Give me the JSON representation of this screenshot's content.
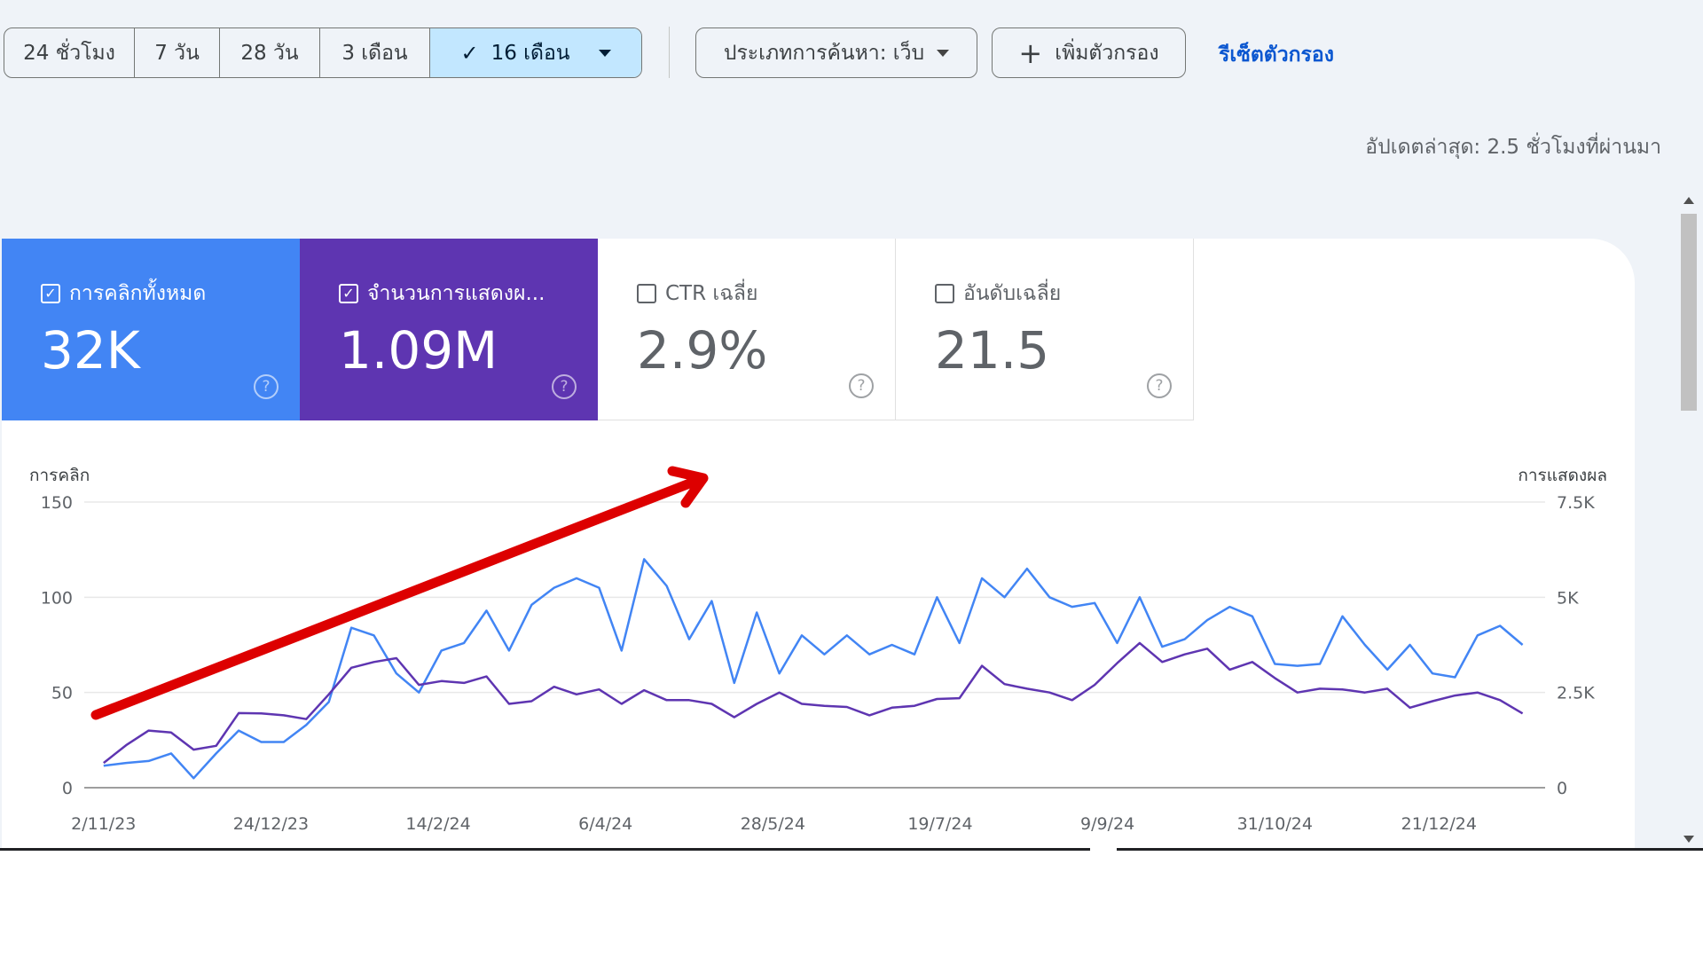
{
  "toolbar": {
    "ranges": [
      "24 ชั่วโมง",
      "7 วัน",
      "28 วัน",
      "3 เดือน",
      "16 เดือน"
    ],
    "selected_range": "16 เดือน",
    "search_type": "ประเภทการค้นหา: เว็บ",
    "add_filter": "เพิ่มตัวกรอง",
    "reset": "รีเซ็ตตัวกรอง",
    "last_updated": "อัปเดตล่าสุด: 2.5 ชั่วโมงที่ผ่านมา"
  },
  "cards": [
    {
      "label": "การคลิกทั้งหมด",
      "value": "32K",
      "checked": true,
      "color": "#4285f4"
    },
    {
      "label": "จำนวนการแสดงผ...",
      "value": "1.09M",
      "checked": true,
      "color": "#5e35b1"
    },
    {
      "label": "CTR เฉลี่ย",
      "value": "2.9%",
      "checked": false,
      "color": "#ffffff"
    },
    {
      "label": "อันดับเฉลี่ย",
      "value": "21.5",
      "checked": false,
      "color": "#ffffff"
    }
  ],
  "chart_data": {
    "type": "line",
    "left_axis": {
      "label": "การคลิก",
      "ticks": [
        "150",
        "100",
        "50",
        "0"
      ],
      "ylim": [
        0,
        150
      ]
    },
    "right_axis": {
      "label": "การแสดงผล",
      "ticks": [
        "7.5K",
        "5K",
        "2.5K",
        "0"
      ],
      "ylim": [
        0,
        7500
      ]
    },
    "x_ticks": [
      {
        "date": "2023-11-02",
        "label": "2/11/23"
      },
      {
        "date": "2023-12-24",
        "label": "24/12/23"
      },
      {
        "date": "2024-02-14",
        "label": "14/2/24"
      },
      {
        "date": "2024-04-06",
        "label": "6/4/24"
      },
      {
        "date": "2024-05-28",
        "label": "28/5/24"
      },
      {
        "date": "2024-07-19",
        "label": "19/7/24"
      },
      {
        "date": "2024-09-09",
        "label": "9/9/24"
      },
      {
        "date": "2024-10-31",
        "label": "31/10/24"
      },
      {
        "date": "2024-12-21",
        "label": "21/12/24"
      }
    ],
    "xlim": [
      "2023-10-27",
      "2025-01-23"
    ],
    "grid": true,
    "x": [
      "2023-11-02",
      "2023-11-09",
      "2023-11-16",
      "2023-11-23",
      "2023-11-30",
      "2023-12-07",
      "2023-12-14",
      "2023-12-21",
      "2023-12-28",
      "2024-01-04",
      "2024-01-11",
      "2024-01-18",
      "2024-01-25",
      "2024-02-01",
      "2024-02-08",
      "2024-02-15",
      "2024-02-22",
      "2024-02-29",
      "2024-03-07",
      "2024-03-14",
      "2024-03-21",
      "2024-03-28",
      "2024-04-04",
      "2024-04-11",
      "2024-04-18",
      "2024-04-25",
      "2024-05-02",
      "2024-05-09",
      "2024-05-16",
      "2024-05-23",
      "2024-05-30",
      "2024-06-06",
      "2024-06-13",
      "2024-06-20",
      "2024-06-27",
      "2024-07-04",
      "2024-07-11",
      "2024-07-18",
      "2024-07-25",
      "2024-08-01",
      "2024-08-08",
      "2024-08-15",
      "2024-08-22",
      "2024-08-29",
      "2024-09-05",
      "2024-09-12",
      "2024-09-19",
      "2024-09-26",
      "2024-10-03",
      "2024-10-10",
      "2024-10-17",
      "2024-10-24",
      "2024-10-31",
      "2024-11-07",
      "2024-11-14",
      "2024-11-21",
      "2024-11-28",
      "2024-12-05",
      "2024-12-12",
      "2024-12-19",
      "2024-12-26",
      "2025-01-02",
      "2025-01-09",
      "2025-01-16"
    ],
    "series": [
      {
        "axis": "left",
        "color": "#4285f4",
        "values": [
          11.5,
          13,
          14,
          18,
          5,
          18,
          30,
          24,
          24,
          33,
          45,
          84,
          80,
          60,
          50,
          72,
          76,
          93,
          72,
          96,
          105,
          110,
          105,
          72,
          120,
          106,
          78,
          98,
          55,
          92,
          60,
          80,
          70,
          80,
          70,
          75,
          70,
          100,
          76,
          110,
          100,
          115,
          100,
          95,
          97,
          76,
          100,
          74,
          78,
          88,
          95,
          90,
          65,
          64,
          65,
          90,
          75,
          62,
          75,
          60,
          58,
          80,
          85,
          75
        ]
      },
      {
        "axis": "right",
        "color": "#5e35b1",
        "values": [
          650,
          1115,
          1500,
          1450,
          1000,
          1100,
          1960,
          1950,
          1900,
          1800,
          2450,
          3150,
          3300,
          3400,
          2700,
          2800,
          2750,
          2920,
          2200,
          2270,
          2650,
          2450,
          2580,
          2200,
          2560,
          2300,
          2300,
          2200,
          1850,
          2200,
          2500,
          2200,
          2150,
          2120,
          1900,
          2100,
          2150,
          2330,
          2350,
          3200,
          2720,
          2600,
          2500,
          2300,
          2700,
          3270,
          3800,
          3300,
          3500,
          3650,
          3100,
          3300,
          2880,
          2500,
          2600,
          2580,
          2500,
          2600,
          2100,
          2270,
          2420,
          2500,
          2300,
          1950
        ]
      }
    ]
  },
  "annotation": {
    "arrow_color": "#dd0000"
  }
}
